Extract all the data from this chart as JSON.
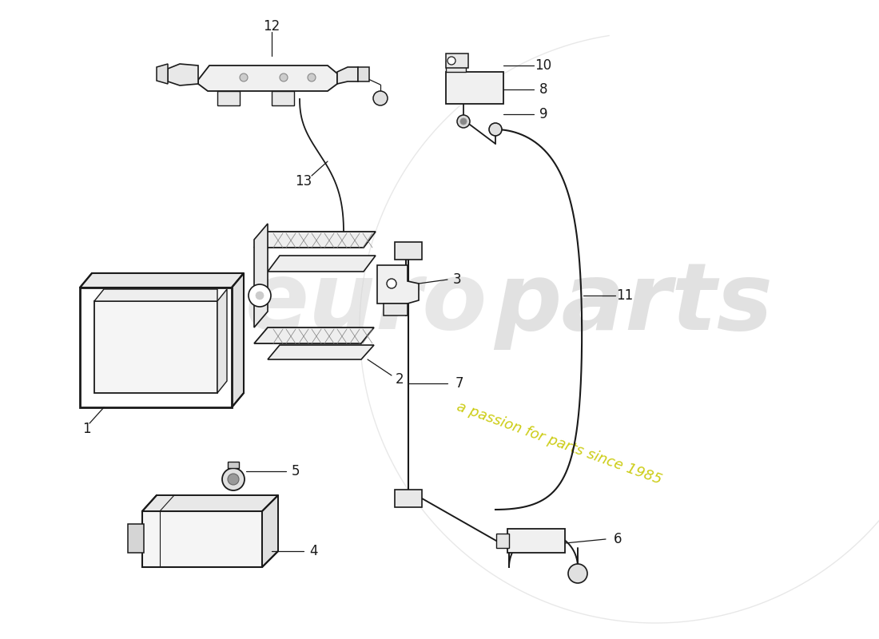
{
  "bg_color": "#ffffff",
  "lc": "#1a1a1a",
  "fig_w": 11.0,
  "fig_h": 8.0,
  "wm_euro_color": "#d0d0d0",
  "wm_parts_color": "#c0c0c0",
  "wm_circle_color": "#cccccc",
  "wm_yellow": "#d4d400",
  "wm_passion_text": "a passion for parts since 1985"
}
